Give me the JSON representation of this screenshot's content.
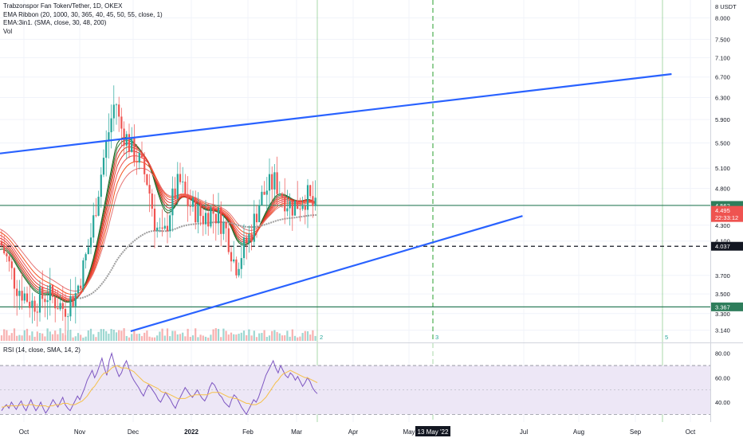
{
  "legend": {
    "title": "Trabzonspor Fan Token/Tether, 1D, OKEX",
    "ema_ribbon": "EMA Ribbon (20, 1000, 30, 365, 40, 45, 50, 55, close, 1)",
    "ema_3in1": "EMA:3in1. (SMA, close, 30, 48, 200)",
    "vol": "Vol"
  },
  "rsi_legend": "RSI (14, close, SMA, 14, 2)",
  "currency_label": "8 USDT",
  "colors": {
    "up": "#26a69a",
    "down": "#ef5350",
    "trendline": "#2962ff",
    "hline": "#2e7d5b",
    "rsi": "#7e57c2",
    "rsi_ma": "#f5c04a",
    "rsi_band": "#ede7f6"
  },
  "chart_data": [
    {
      "type": "candlestick",
      "title": "Trabzonspor Fan Token/Tether, 1D, OKEX",
      "x_tick_labels": [
        "Oct",
        "Nov",
        "Dec",
        "2022",
        "Feb",
        "Mar",
        "Apr",
        "May",
        "Jul",
        "Aug",
        "Sep",
        "Oct"
      ],
      "x_highlight_label": "13 May '22",
      "y_tick_labels": [
        "8.000",
        "7.500",
        "7.100",
        "6.700",
        "6.300",
        "5.900",
        "5.500",
        "5.100",
        "4.800",
        "4.300",
        "4.100",
        "3.700",
        "3.500",
        "3.300",
        "3.140"
      ],
      "price_labels": [
        {
          "label": "4.562",
          "value": 4.562,
          "style": "line"
        },
        {
          "label": "4.495",
          "sublabel": "22:33:12",
          "value": 4.495,
          "style": "last"
        },
        {
          "label": "4.037",
          "value": 4.037,
          "style": "dashed"
        },
        {
          "label": "3.367",
          "value": 3.367,
          "style": "line"
        }
      ],
      "horizontal_lines": [
        4.562,
        4.037,
        3.367
      ],
      "vertical_markers": [
        "2",
        "3",
        "5"
      ],
      "trendlines": [
        {
          "name": "upper",
          "from": [
            "2021-09-20",
            5.33
          ],
          "to": [
            "2022-09-20",
            6.76
          ]
        },
        {
          "name": "lower",
          "from": [
            "2021-11-30",
            3.13
          ],
          "to": [
            "2022-07-01",
            4.42
          ]
        }
      ],
      "y_log_scale": true
    },
    {
      "type": "line",
      "title": "RSI (14, close, SMA, 14, 2)",
      "y_tick_labels": [
        "80.00",
        "60.00",
        "40.00"
      ],
      "ylim": [
        25,
        85
      ],
      "bands": [
        30,
        70
      ],
      "series": [
        {
          "values": [
            33,
            36,
            38,
            35,
            40,
            37,
            34,
            38,
            41,
            36,
            33,
            38,
            42,
            37,
            33,
            36,
            40,
            35,
            31,
            34,
            38,
            42,
            39,
            36,
            40,
            44,
            38,
            35,
            33,
            37,
            41,
            45,
            42,
            47,
            52,
            58,
            62,
            66,
            60,
            64,
            70,
            76,
            68,
            62,
            74,
            80,
            72,
            66,
            61,
            64,
            70,
            74,
            68,
            62,
            58,
            55,
            52,
            48,
            45,
            50,
            54,
            52,
            49,
            46,
            42,
            40,
            44,
            48,
            45,
            42,
            38,
            35,
            40,
            44,
            48,
            52,
            49,
            46,
            44,
            47,
            50,
            46,
            43,
            41,
            45,
            52,
            56,
            54,
            50,
            46,
            44,
            40,
            38,
            36,
            42,
            46,
            44,
            40,
            36,
            33,
            30,
            34,
            38,
            42,
            40,
            44,
            50,
            56,
            62,
            66,
            70,
            74,
            68,
            64,
            70,
            66,
            62,
            60,
            64,
            62,
            58,
            61,
            57,
            53,
            56,
            60,
            57,
            52,
            49,
            47
          ]
        },
        {
          "values": [
            36,
            36,
            37,
            37,
            37,
            37,
            37,
            37,
            38,
            38,
            37,
            38,
            38,
            38,
            37,
            37,
            37,
            37,
            37,
            36,
            37,
            37,
            38,
            38,
            38,
            39,
            39,
            39,
            38,
            38,
            38,
            39,
            40,
            41,
            43,
            45,
            48,
            51,
            53,
            56,
            59,
            62,
            64,
            64,
            66,
            68,
            69,
            70,
            69,
            68,
            68,
            68,
            67,
            66,
            65,
            63,
            61,
            59,
            57,
            56,
            55,
            54,
            53,
            52,
            51,
            49,
            48,
            48,
            47,
            46,
            45,
            44,
            43,
            43,
            43,
            43,
            44,
            45,
            45,
            46,
            46,
            46,
            46,
            46,
            46,
            47,
            48,
            48,
            48,
            48,
            47,
            46,
            45,
            44,
            44,
            43,
            43,
            42,
            41,
            40,
            39,
            39,
            38,
            38,
            38,
            39,
            40,
            42,
            44,
            47,
            50,
            53,
            56,
            58,
            61,
            63,
            64,
            65,
            66,
            65,
            64,
            63,
            62,
            61,
            60,
            60,
            59,
            58,
            57,
            56
          ]
        }
      ]
    }
  ]
}
